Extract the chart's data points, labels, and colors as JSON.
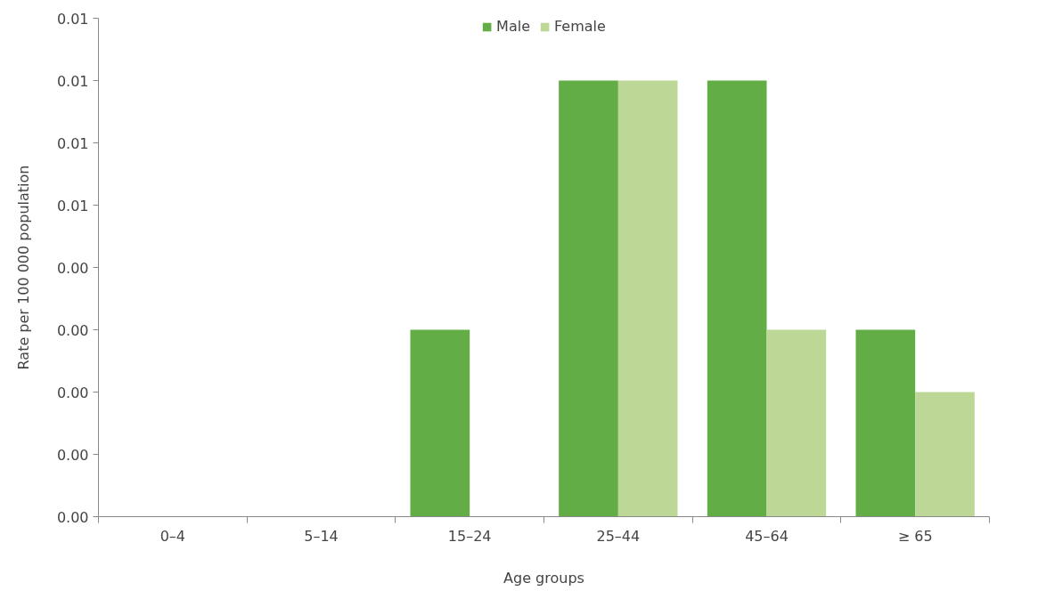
{
  "chart_data": {
    "type": "bar",
    "xlabel": "Age groups",
    "ylabel": "Rate per 100 000 population",
    "categories": [
      "0–4",
      "5–14",
      "15–24",
      "25–44",
      "45–64",
      "≥ 65"
    ],
    "series": [
      {
        "name": "Male",
        "color": "#62ad46",
        "values": [
          0,
          0,
          0.003,
          0.007,
          0.007,
          0.003
        ]
      },
      {
        "name": "Female",
        "color": "#bdd796",
        "values": [
          0,
          0,
          0,
          0.007,
          0.003,
          0.002
        ]
      }
    ],
    "ylim": [
      0,
      0.008
    ],
    "yticks": [
      {
        "value": 0,
        "label": "0.00"
      },
      {
        "value": 0.001,
        "label": "0.00"
      },
      {
        "value": 0.002,
        "label": "0.00"
      },
      {
        "value": 0.003,
        "label": "0.00"
      },
      {
        "value": 0.004,
        "label": "0.00"
      },
      {
        "value": 0.005,
        "label": "0.01"
      },
      {
        "value": 0.006,
        "label": "0.01"
      },
      {
        "value": 0.007,
        "label": "0.01"
      },
      {
        "value": 0.008,
        "label": "0.01"
      }
    ],
    "grid": false,
    "legend": "top"
  }
}
